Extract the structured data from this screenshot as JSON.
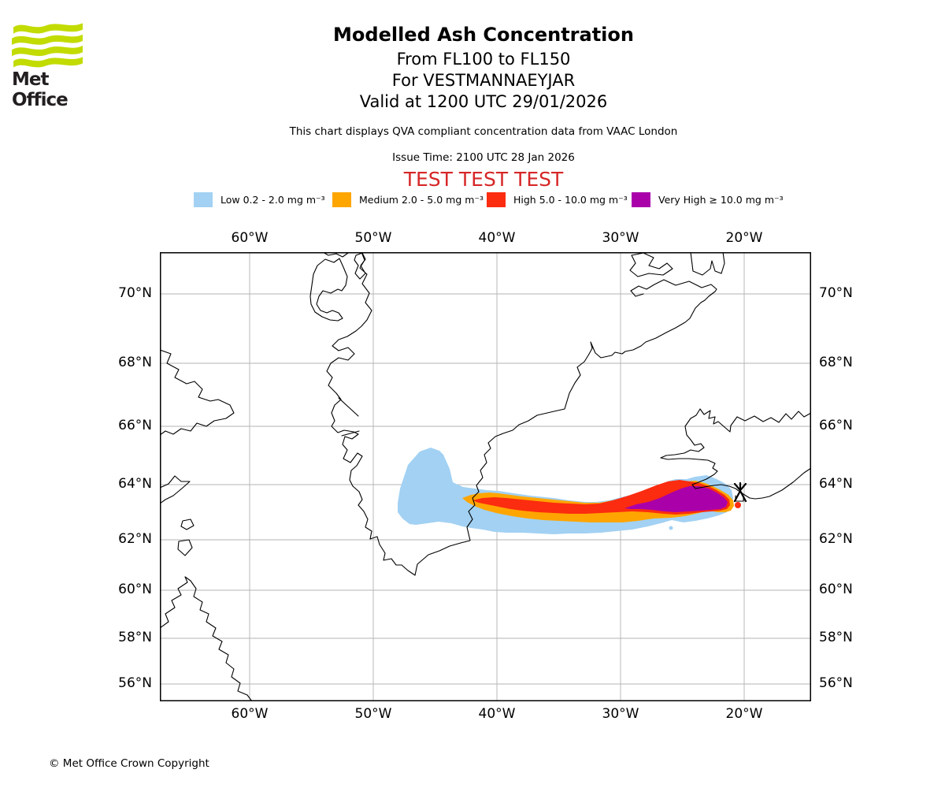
{
  "branding": {
    "logo_text": "Met Office",
    "logo_color": "#C2DB00"
  },
  "header": {
    "title": "Modelled Ash Concentration",
    "subtitle1": "From FL100 to FL150",
    "subtitle2": "For VESTMANNAEYJAR",
    "subtitle3": "Valid at 1200 UTC 29/01/2026",
    "notice": "This chart displays QVA compliant concentration data from VAAC London",
    "issue_time": "Issue Time: 2100 UTC 28 Jan 2026",
    "test_banner": "TEST TEST TEST",
    "test_banner_color": "#D62728"
  },
  "legend": {
    "items": [
      {
        "name": "low",
        "label": "Low 0.2 - 2.0 mg m⁻³",
        "color": "#A2D1F3"
      },
      {
        "name": "medium",
        "label": "Medium 2.0 - 5.0 mg m⁻³",
        "color": "#FFA500"
      },
      {
        "name": "high",
        "label": "High 5.0 - 10.0 mg m⁻³",
        "color": "#FB2C0F"
      },
      {
        "name": "very_high",
        "label": "Very High ≥ 10.0 mg m⁻³",
        "color": "#AA00AA"
      }
    ]
  },
  "map": {
    "lon_labels": [
      "60°W",
      "50°W",
      "40°W",
      "30°W",
      "20°W"
    ],
    "lat_labels": [
      "70°N",
      "68°N",
      "66°N",
      "64°N",
      "62°N",
      "60°N",
      "58°N",
      "56°N"
    ]
  },
  "footer": {
    "copyright": "© Met Office Crown Copyright"
  },
  "chart_data": {
    "type": "map",
    "title": "Modelled Ash Concentration",
    "flight_levels": "FL100 to FL150",
    "volcano": "VESTMANNAEYJAR",
    "valid_time": "1200 UTC 29/01/2026",
    "issue_time": "2100 UTC 28 Jan 2026",
    "data_source": "VAAC London (QVA compliant)",
    "projection": "Mercator",
    "lon_gridlines_deg_west": [
      60,
      50,
      40,
      30,
      20
    ],
    "lat_gridlines_deg_north": [
      70,
      68,
      66,
      64,
      62,
      60,
      58,
      56
    ],
    "concentration_bands_mg_m3": [
      {
        "level": "Low",
        "range": "0.2 - 2.0"
      },
      {
        "level": "Medium",
        "range": "2.0 - 5.0"
      },
      {
        "level": "High",
        "range": "5.0 - 10.0"
      },
      {
        "level": "Very High",
        "range": "≥ 10.0"
      }
    ],
    "plume": {
      "description": "Elongated ash plume centred near 63°N stretching from the Vestmannaeyjar source on Iceland's south coast (~20.5°W) westward across the Denmark Strait to ~47.5°W over southeast Greenland; Very High band lies between ~29°W and ~21°W, nested inside High, Medium and Low contours.",
      "approx_lat_band_deg_north": [
        62.3,
        64.4
      ],
      "approx_lon_extent_deg_west": [
        47.5,
        20.3
      ]
    },
    "land_features": [
      "Baffin Island / Labrador coast",
      "Greenland",
      "Iceland"
    ]
  }
}
